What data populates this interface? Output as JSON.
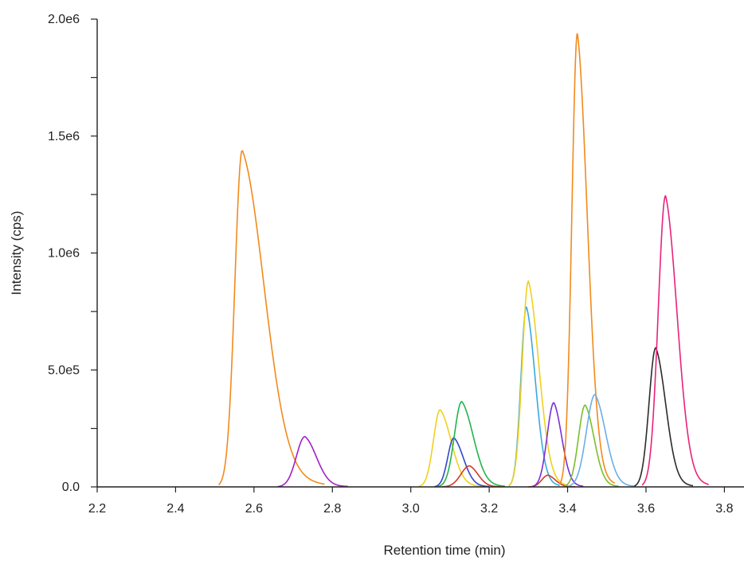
{
  "chart_data": {
    "type": "line",
    "title": "",
    "xlabel": "Retention time (min)",
    "ylabel": "Intensity (cps)",
    "xlim": [
      2.2,
      3.85
    ],
    "ylim": [
      0,
      2000000
    ],
    "grid": false,
    "legend": "none",
    "x_ticks": [
      {
        "value": 2.2,
        "label": "2.2"
      },
      {
        "value": 2.4,
        "label": "2.4"
      },
      {
        "value": 2.6,
        "label": "2.6"
      },
      {
        "value": 2.8,
        "label": "2.8"
      },
      {
        "value": 3.0,
        "label": "3.0"
      },
      {
        "value": 3.2,
        "label": "3.2"
      },
      {
        "value": 3.4,
        "label": "3.4"
      },
      {
        "value": 3.6,
        "label": "3.6"
      },
      {
        "value": 3.8,
        "label": "3.8"
      }
    ],
    "y_ticks": [
      {
        "value": 0,
        "label": "0.0"
      },
      {
        "value": 250000,
        "label": ""
      },
      {
        "value": 500000,
        "label": "5.0e5"
      },
      {
        "value": 750000,
        "label": ""
      },
      {
        "value": 1000000,
        "label": "1.0e6"
      },
      {
        "value": 1250000,
        "label": ""
      },
      {
        "value": 1500000,
        "label": "1.5e6"
      },
      {
        "value": 1750000,
        "label": ""
      },
      {
        "value": 2000000,
        "label": "2.0e6"
      }
    ],
    "series": [
      {
        "color": "#F28A1C",
        "peak_x": 2.57,
        "peak_y": 1440000,
        "x_start": 2.51,
        "x_end": 2.78
      },
      {
        "color": "#A020C8",
        "peak_x": 2.73,
        "peak_y": 215000,
        "x_start": 2.66,
        "x_end": 2.84
      },
      {
        "color": "#F0D020",
        "peak_x": 3.075,
        "peak_y": 330000,
        "x_start": 3.02,
        "x_end": 3.18
      },
      {
        "color": "#3346C8",
        "peak_x": 3.11,
        "peak_y": 210000,
        "x_start": 3.06,
        "x_end": 3.2
      },
      {
        "color": "#22B44A",
        "peak_x": 3.13,
        "peak_y": 365000,
        "x_start": 3.07,
        "x_end": 3.24
      },
      {
        "color": "#D03A28",
        "peak_x": 3.15,
        "peak_y": 90000,
        "x_start": 3.08,
        "x_end": 3.23
      },
      {
        "color": "#3AA8E0",
        "peak_x": 3.295,
        "peak_y": 770000,
        "x_start": 3.25,
        "x_end": 3.38
      },
      {
        "color": "#F0D020",
        "peak_x": 3.3,
        "peak_y": 880000,
        "x_start": 3.25,
        "x_end": 3.4
      },
      {
        "color": "#D03A28",
        "peak_x": 3.35,
        "peak_y": 50000,
        "x_start": 3.3,
        "x_end": 3.42
      },
      {
        "color": "#7A2FD8",
        "peak_x": 3.365,
        "peak_y": 360000,
        "x_start": 3.31,
        "x_end": 3.44
      },
      {
        "color": "#F28A1C",
        "peak_x": 3.425,
        "peak_y": 1940000,
        "x_start": 3.38,
        "x_end": 3.52
      },
      {
        "color": "#7ABF2A",
        "peak_x": 3.445,
        "peak_y": 350000,
        "x_start": 3.39,
        "x_end": 3.53
      },
      {
        "color": "#6BAEE8",
        "peak_x": 3.47,
        "peak_y": 395000,
        "x_start": 3.4,
        "x_end": 3.57
      },
      {
        "color": "#2B2B2B",
        "peak_x": 3.625,
        "peak_y": 595000,
        "x_start": 3.57,
        "x_end": 3.72
      },
      {
        "color": "#E8237A",
        "peak_x": 3.65,
        "peak_y": 1245000,
        "x_start": 3.59,
        "x_end": 3.76
      }
    ]
  }
}
